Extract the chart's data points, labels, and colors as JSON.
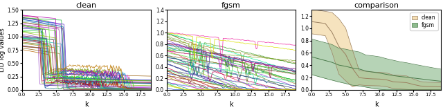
{
  "titles": [
    "clean",
    "fgsm",
    "comparison"
  ],
  "xlabel": "k",
  "ylabel": "LID log values",
  "clean_ylim": [
    0.0,
    1.5
  ],
  "fgsm_ylim": [
    0.0,
    1.4
  ],
  "comp_ylim": [
    0.0,
    1.3
  ],
  "xticks": [
    0.0,
    2.5,
    5.0,
    7.5,
    10.0,
    12.5,
    15.0,
    17.5
  ],
  "xticklabels": [
    "0.0",
    "2.5",
    "5.0",
    "7.5",
    "10.0",
    "12.5",
    "15.0",
    "17.5"
  ],
  "n_clean_lines": 40,
  "n_fgsm_lines": 50,
  "comp_clean_fill": "#f5deb3",
  "comp_fgsm_fill": "#8fbc8f",
  "comp_clean_line": "#9b8060",
  "comp_fgsm_line": "#4a7a4a",
  "legend_clean_label": "clean",
  "legend_fgsm_label": "fgsm",
  "figsize": [
    6.4,
    1.59
  ],
  "dpi": 100
}
